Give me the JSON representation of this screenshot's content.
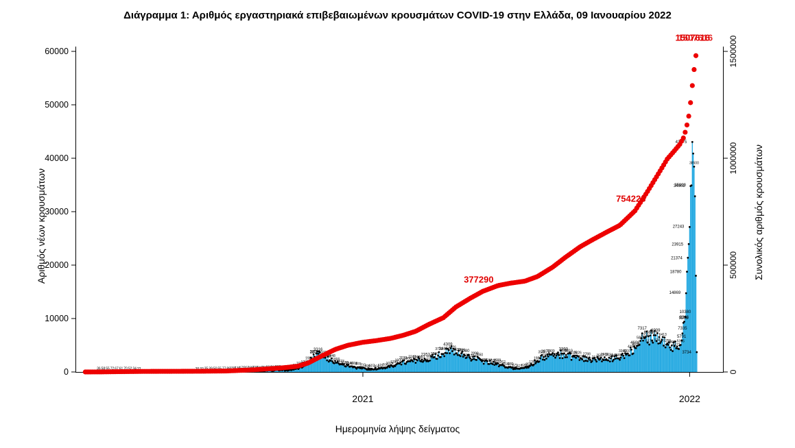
{
  "chart_data": {
    "type": "bar",
    "title": "Διάγραμμα 1: Αριθμός εργαστηριακά επιβεβαιωμένων κρουσμάτων COVID-19 στην Ελλάδα, 09 Ιανουαρίου 2022",
    "xlabel": "Ημερομηνία λήψης δείγματος",
    "ylabel_left": "Αριθμός νέων κρουσμάτων",
    "ylabel_right": "Συνολικός αριθμός κρουσμάτων",
    "x_axis": {
      "start": "2020-02-15",
      "end": "2022-02-08",
      "ticks": [
        {
          "label": "2021",
          "date": "2021-01-01"
        },
        {
          "label": "2022",
          "date": "2022-01-01"
        }
      ]
    },
    "y_axis_left": {
      "min": 0,
      "max": 60000,
      "ticks": [
        0,
        10000,
        20000,
        30000,
        40000,
        50000,
        60000
      ]
    },
    "y_axis_right": {
      "min": 0,
      "max": 1500000,
      "ticks": [
        0,
        500000,
        1000000,
        1500000
      ]
    },
    "colors": {
      "bars": "#29ABE2",
      "points": "#000000",
      "cumulative": "#ED0000",
      "annotation": "#E00000"
    },
    "legend": null,
    "grid": false,
    "series": [
      {
        "name": "daily_new_cases",
        "type": "bar",
        "axis": "left",
        "points": [
          [
            "2020-02-26",
            3
          ],
          [
            "2020-03-10",
            30
          ],
          [
            "2020-03-25",
            70
          ],
          [
            "2020-04-10",
            60
          ],
          [
            "2020-04-25",
            25
          ],
          [
            "2020-05-10",
            15
          ],
          [
            "2020-06-01",
            10
          ],
          [
            "2020-06-20",
            15
          ],
          [
            "2020-07-10",
            35
          ],
          [
            "2020-07-25",
            55
          ],
          [
            "2020-08-10",
            150
          ],
          [
            "2020-08-25",
            200
          ],
          [
            "2020-09-10",
            250
          ],
          [
            "2020-09-25",
            320
          ],
          [
            "2020-10-10",
            420
          ],
          [
            "2020-10-20",
            650
          ],
          [
            "2020-10-27",
            1200
          ],
          [
            "2020-11-03",
            2100
          ],
          [
            "2020-11-08",
            2801
          ],
          [
            "2020-11-12",
            3316
          ],
          [
            "2020-11-18",
            2800
          ],
          [
            "2020-11-25",
            2300
          ],
          [
            "2020-12-02",
            1800
          ],
          [
            "2020-12-10",
            1400
          ],
          [
            "2020-12-18",
            1100
          ],
          [
            "2020-12-26",
            800
          ],
          [
            "2021-01-03",
            700
          ],
          [
            "2021-01-10",
            500
          ],
          [
            "2021-01-20",
            600
          ],
          [
            "2021-02-01",
            1100
          ],
          [
            "2021-02-10",
            1600
          ],
          [
            "2021-02-20",
            1900
          ],
          [
            "2021-03-02",
            2200
          ],
          [
            "2021-03-12",
            2353
          ],
          [
            "2021-03-22",
            2800
          ],
          [
            "2021-04-01",
            3465
          ],
          [
            "2021-04-06",
            4309
          ],
          [
            "2021-04-15",
            3500
          ],
          [
            "2021-04-25",
            3080
          ],
          [
            "2021-05-05",
            2500
          ],
          [
            "2021-05-15",
            2100
          ],
          [
            "2021-05-25",
            1700
          ],
          [
            "2021-06-04",
            1200
          ],
          [
            "2021-06-14",
            800
          ],
          [
            "2021-06-24",
            600
          ],
          [
            "2021-07-04",
            900
          ],
          [
            "2021-07-14",
            2000
          ],
          [
            "2021-07-24",
            2972
          ],
          [
            "2021-08-03",
            3200
          ],
          [
            "2021-08-13",
            3393
          ],
          [
            "2021-08-23",
            3000
          ],
          [
            "2021-09-02",
            2600
          ],
          [
            "2021-09-12",
            2300
          ],
          [
            "2021-09-22",
            2400
          ],
          [
            "2021-10-02",
            2200
          ],
          [
            "2021-10-12",
            2600
          ],
          [
            "2021-10-22",
            3300
          ],
          [
            "2021-11-01",
            4608
          ],
          [
            "2021-11-09",
            7317
          ],
          [
            "2021-11-16",
            6565
          ],
          [
            "2021-11-24",
            6909
          ],
          [
            "2021-12-01",
            6000
          ],
          [
            "2021-12-08",
            5200
          ],
          [
            "2021-12-15",
            4800
          ],
          [
            "2021-12-21",
            5000
          ],
          [
            "2021-12-23",
            5791
          ],
          [
            "2021-12-24",
            7335
          ],
          [
            "2021-12-25",
            9236
          ],
          [
            "2021-12-26",
            9346
          ],
          [
            "2021-12-27",
            10380
          ],
          [
            "2021-12-28",
            14869
          ],
          [
            "2021-12-29",
            18780
          ],
          [
            "2021-12-30",
            21374
          ],
          [
            "2021-12-31",
            23915
          ],
          [
            "2022-01-01",
            27243
          ],
          [
            "2022-01-02",
            34902
          ],
          [
            "2022-01-03",
            35000
          ],
          [
            "2022-01-04",
            43075
          ],
          [
            "2022-01-05",
            41000
          ],
          [
            "2022-01-06",
            38500
          ],
          [
            "2022-01-07",
            33000
          ],
          [
            "2022-01-08",
            18000
          ],
          [
            "2022-01-09",
            3734
          ]
        ]
      },
      {
        "name": "daily_new_cases_points",
        "type": "scatter",
        "axis": "left",
        "note": "black dots with value labels, same data as bars"
      },
      {
        "name": "cumulative_cases",
        "type": "line",
        "axis": "right",
        "points": [
          [
            "2020-02-26",
            1
          ],
          [
            "2020-03-15",
            331
          ],
          [
            "2020-04-01",
            1314
          ],
          [
            "2020-05-01",
            2591
          ],
          [
            "2020-06-01",
            2918
          ],
          [
            "2020-07-01",
            3409
          ],
          [
            "2020-08-01",
            4477
          ],
          [
            "2020-09-01",
            10134
          ],
          [
            "2020-10-01",
            18475
          ],
          [
            "2020-10-20",
            26469
          ],
          [
            "2020-11-01",
            42080
          ],
          [
            "2020-11-15",
            72510
          ],
          [
            "2020-12-01",
            105271
          ],
          [
            "2020-12-15",
            124534
          ],
          [
            "2021-01-01",
            138850
          ],
          [
            "2021-01-15",
            146020
          ],
          [
            "2021-02-01",
            156957
          ],
          [
            "2021-02-15",
            171542
          ],
          [
            "2021-03-01",
            190235
          ],
          [
            "2021-03-15",
            221147
          ],
          [
            "2021-04-01",
            254031
          ],
          [
            "2021-04-15",
            304184
          ],
          [
            "2021-05-01",
            344917
          ],
          [
            "2021-05-15",
            377290
          ],
          [
            "2021-06-01",
            404163
          ],
          [
            "2021-06-15",
            415574
          ],
          [
            "2021-07-01",
            424960
          ],
          [
            "2021-07-15",
            446469
          ],
          [
            "2021-08-01",
            490386
          ],
          [
            "2021-08-15",
            535662
          ],
          [
            "2021-09-01",
            586439
          ],
          [
            "2021-09-15",
            619684
          ],
          [
            "2021-10-01",
            655767
          ],
          [
            "2021-10-15",
            686088
          ],
          [
            "2021-11-01",
            754223
          ],
          [
            "2021-11-15",
            844660
          ],
          [
            "2021-12-01",
            954460
          ],
          [
            "2021-12-07",
            996288
          ],
          [
            "2021-12-15",
            1035000
          ],
          [
            "2021-12-21",
            1065000
          ],
          [
            "2021-12-25",
            1095000
          ],
          [
            "2021-12-28",
            1135000
          ],
          [
            "2021-12-31",
            1197000
          ],
          [
            "2022-01-02",
            1260000
          ],
          [
            "2022-01-04",
            1340000
          ],
          [
            "2022-01-06",
            1415000
          ],
          [
            "2022-01-08",
            1480000
          ],
          [
            "2022-01-09",
            1507616
          ]
        ]
      }
    ],
    "labeled_dates": [
      "2020-11-08",
      "2020-11-12",
      "2021-03-12",
      "2021-04-01",
      "2021-04-06",
      "2021-04-25",
      "2021-07-24",
      "2021-08-13",
      "2021-11-01",
      "2021-11-09",
      "2021-11-16",
      "2021-11-24",
      "2021-12-23",
      "2021-12-24",
      "2021-12-25",
      "2021-12-26",
      "2021-12-27",
      "2021-12-28",
      "2021-12-29",
      "2021-12-30",
      "2021-12-31",
      "2022-01-01",
      "2022-01-02",
      "2022-01-03",
      "2022-01-04",
      "2022-01-09"
    ],
    "annotations": [
      {
        "text": "377290",
        "date": "2021-05-15",
        "value": 377290,
        "double": false
      },
      {
        "text": "754223",
        "date": "2021-11-01",
        "value": 754223,
        "double": false
      },
      {
        "text": "1507616",
        "date": "2022-01-09",
        "value": 1507616,
        "double": true
      }
    ]
  }
}
